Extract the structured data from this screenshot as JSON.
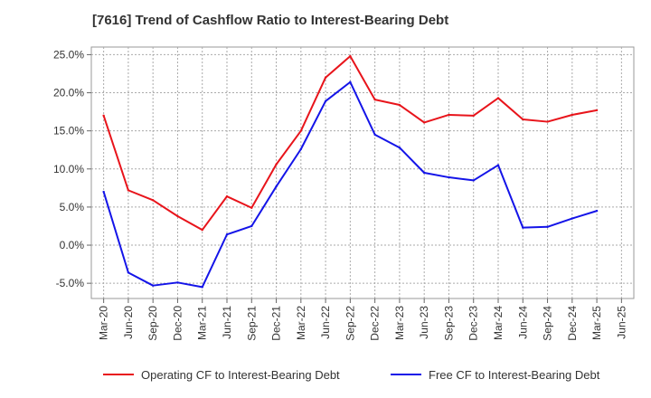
{
  "chart_data": {
    "type": "line",
    "title": "[7616]  Trend of Cashflow Ratio to Interest-Bearing Debt",
    "xlabel": "",
    "ylabel": "",
    "x": [
      "Mar-20",
      "Jun-20",
      "Sep-20",
      "Dec-20",
      "Mar-21",
      "Jun-21",
      "Sep-21",
      "Dec-21",
      "Mar-22",
      "Jun-22",
      "Sep-22",
      "Dec-22",
      "Mar-23",
      "Jun-23",
      "Sep-23",
      "Dec-23",
      "Mar-24",
      "Jun-24",
      "Sep-24",
      "Dec-24",
      "Mar-25",
      "Jun-25"
    ],
    "y_ticks": [
      "25.0%",
      "20.0%",
      "15.0%",
      "10.0%",
      "5.0%",
      "0.0%",
      "-5.0%"
    ],
    "y_tick_values": [
      25,
      20,
      15,
      10,
      5,
      0,
      -5
    ],
    "ylim": [
      -7,
      26
    ],
    "grid": true,
    "legend_position": "bottom",
    "series": [
      {
        "name": "Operating CF to Interest-Bearing Debt",
        "color": "#e8141b",
        "values": [
          17.0,
          7.2,
          5.9,
          3.8,
          2.0,
          6.4,
          4.9,
          10.6,
          15.0,
          22.0,
          24.8,
          19.1,
          18.4,
          16.1,
          17.1,
          17.0,
          19.3,
          16.5,
          16.2,
          17.1,
          17.7,
          null
        ]
      },
      {
        "name": "Free CF to Interest-Bearing Debt",
        "color": "#1414e8",
        "values": [
          7.0,
          -3.6,
          -5.3,
          -4.9,
          -5.5,
          1.4,
          2.5,
          7.7,
          12.6,
          18.9,
          21.4,
          14.5,
          12.8,
          9.5,
          8.9,
          8.5,
          10.5,
          2.3,
          2.4,
          3.5,
          4.5,
          null
        ]
      }
    ]
  }
}
